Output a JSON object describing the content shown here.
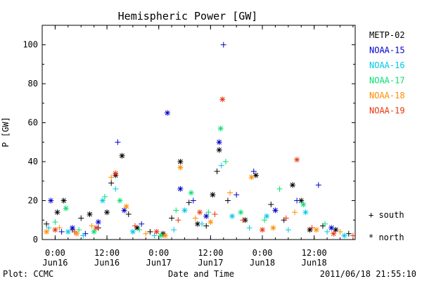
{
  "chart_data": {
    "type": "scatter",
    "title": "Hemispheric Power [GW]",
    "xlabel": "Date and Time",
    "ylabel": "P [GW]",
    "ylim": [
      0,
      110
    ],
    "xlim": [
      "2011-06-15T21:00",
      "2011-06-18T21:30"
    ],
    "y_ticks": [
      0,
      20,
      40,
      60,
      80,
      100
    ],
    "x_ticks": [
      {
        "time": "2011-06-16T00:00",
        "label": "0:00",
        "sublabel": "Jun16"
      },
      {
        "time": "2011-06-16T12:00",
        "label": "12:00",
        "sublabel": "Jun16"
      },
      {
        "time": "2011-06-17T00:00",
        "label": "0:00",
        "sublabel": "Jun17"
      },
      {
        "time": "2011-06-17T12:00",
        "label": "12:00",
        "sublabel": "Jun17"
      },
      {
        "time": "2011-06-18T00:00",
        "label": "0:00",
        "sublabel": "Jun18"
      },
      {
        "time": "2011-06-18T12:00",
        "label": "12:00",
        "sublabel": "Jun18"
      }
    ],
    "legend_placement": "right",
    "marker_legend": [
      {
        "symbol": "+",
        "label": "south"
      },
      {
        "symbol": "*",
        "label": "north"
      }
    ],
    "series": [
      {
        "name": "METP-02",
        "color": "#000000",
        "points": [
          {
            "t": "2011-06-15T22:00",
            "v": 8,
            "h": "s"
          },
          {
            "t": "2011-06-16T00:30",
            "v": 14,
            "h": "n"
          },
          {
            "t": "2011-06-16T02:00",
            "v": 20,
            "h": "n"
          },
          {
            "t": "2011-06-16T04:00",
            "v": 5,
            "h": "s"
          },
          {
            "t": "2011-06-16T06:00",
            "v": 11,
            "h": "s"
          },
          {
            "t": "2011-06-16T08:00",
            "v": 13,
            "h": "n"
          },
          {
            "t": "2011-06-16T10:00",
            "v": 6,
            "h": "s"
          },
          {
            "t": "2011-06-16T12:00",
            "v": 14,
            "h": "n"
          },
          {
            "t": "2011-06-16T13:00",
            "v": 29,
            "h": "s"
          },
          {
            "t": "2011-06-16T14:00",
            "v": 33,
            "h": "n"
          },
          {
            "t": "2011-06-16T15:30",
            "v": 43,
            "h": "n"
          },
          {
            "t": "2011-06-16T17:00",
            "v": 13,
            "h": "s"
          },
          {
            "t": "2011-06-16T19:00",
            "v": 6,
            "h": "n"
          },
          {
            "t": "2011-06-16T22:00",
            "v": 4,
            "h": "s"
          },
          {
            "t": "2011-06-17T01:00",
            "v": 3,
            "h": "n"
          },
          {
            "t": "2011-06-17T03:00",
            "v": 11,
            "h": "s"
          },
          {
            "t": "2011-06-17T05:00",
            "v": 40,
            "h": "n"
          },
          {
            "t": "2011-06-17T07:00",
            "v": 19,
            "h": "s"
          },
          {
            "t": "2011-06-17T09:00",
            "v": 8,
            "h": "n"
          },
          {
            "t": "2011-06-17T11:00",
            "v": 7,
            "h": "s"
          },
          {
            "t": "2011-06-17T12:30",
            "v": 23,
            "h": "n"
          },
          {
            "t": "2011-06-17T13:30",
            "v": 35,
            "h": "s"
          },
          {
            "t": "2011-06-17T14:00",
            "v": 46,
            "h": "n"
          },
          {
            "t": "2011-06-17T16:00",
            "v": 20,
            "h": "s"
          },
          {
            "t": "2011-06-17T20:00",
            "v": 10,
            "h": "n"
          },
          {
            "t": "2011-06-17T22:30",
            "v": 33,
            "h": "n"
          },
          {
            "t": "2011-06-18T02:00",
            "v": 18,
            "h": "s"
          },
          {
            "t": "2011-06-18T05:00",
            "v": 10,
            "h": "s"
          },
          {
            "t": "2011-06-18T07:00",
            "v": 28,
            "h": "n"
          },
          {
            "t": "2011-06-18T09:00",
            "v": 20,
            "h": "n"
          },
          {
            "t": "2011-06-18T11:00",
            "v": 5,
            "h": "n"
          },
          {
            "t": "2011-06-18T14:00",
            "v": 7,
            "h": "s"
          },
          {
            "t": "2011-06-18T17:00",
            "v": 5,
            "h": "n"
          },
          {
            "t": "2011-06-18T20:00",
            "v": 3,
            "h": "s"
          }
        ]
      },
      {
        "name": "NOAA-15",
        "color": "#0000cd",
        "points": [
          {
            "t": "2011-06-15T23:00",
            "v": 20,
            "h": "n"
          },
          {
            "t": "2011-06-16T01:30",
            "v": 4,
            "h": "s"
          },
          {
            "t": "2011-06-16T04:00",
            "v": 6,
            "h": "n"
          },
          {
            "t": "2011-06-16T07:00",
            "v": 3,
            "h": "s"
          },
          {
            "t": "2011-06-16T10:00",
            "v": 9,
            "h": "n"
          },
          {
            "t": "2011-06-16T14:30",
            "v": 50,
            "h": "s"
          },
          {
            "t": "2011-06-16T16:00",
            "v": 15,
            "h": "n"
          },
          {
            "t": "2011-06-16T20:00",
            "v": 8,
            "h": "s"
          },
          {
            "t": "2011-06-17T02:00",
            "v": 65,
            "h": "n"
          },
          {
            "t": "2011-06-17T05:00",
            "v": 26,
            "h": "n"
          },
          {
            "t": "2011-06-17T08:00",
            "v": 20,
            "h": "s"
          },
          {
            "t": "2011-06-17T11:00",
            "v": 12,
            "h": "n"
          },
          {
            "t": "2011-06-17T14:00",
            "v": 50,
            "h": "n"
          },
          {
            "t": "2011-06-17T15:00",
            "v": 100,
            "h": "s"
          },
          {
            "t": "2011-06-17T18:00",
            "v": 23,
            "h": "s"
          },
          {
            "t": "2011-06-17T22:00",
            "v": 35,
            "h": "s"
          },
          {
            "t": "2011-06-18T03:00",
            "v": 15,
            "h": "n"
          },
          {
            "t": "2011-06-18T08:00",
            "v": 20,
            "h": "s"
          },
          {
            "t": "2011-06-18T13:00",
            "v": 28,
            "h": "s"
          },
          {
            "t": "2011-06-18T16:00",
            "v": 6,
            "h": "n"
          }
        ]
      },
      {
        "name": "NOAA-16",
        "color": "#00c8e6",
        "points": [
          {
            "t": "2011-06-15T22:30",
            "v": 6,
            "h": "s"
          },
          {
            "t": "2011-06-16T03:00",
            "v": 4,
            "h": "n"
          },
          {
            "t": "2011-06-16T06:30",
            "v": 2,
            "h": "s"
          },
          {
            "t": "2011-06-16T11:00",
            "v": 20,
            "h": "n"
          },
          {
            "t": "2011-06-16T14:00",
            "v": 26,
            "h": "s"
          },
          {
            "t": "2011-06-16T18:00",
            "v": 4,
            "h": "n"
          },
          {
            "t": "2011-06-16T23:00",
            "v": 2,
            "h": "s"
          },
          {
            "t": "2011-06-17T03:30",
            "v": 5,
            "h": "s"
          },
          {
            "t": "2011-06-17T06:00",
            "v": 15,
            "h": "n"
          },
          {
            "t": "2011-06-17T10:00",
            "v": 8,
            "h": "s"
          },
          {
            "t": "2011-06-17T14:30",
            "v": 38,
            "h": "s"
          },
          {
            "t": "2011-06-17T17:00",
            "v": 12,
            "h": "n"
          },
          {
            "t": "2011-06-17T21:00",
            "v": 6,
            "h": "s"
          },
          {
            "t": "2011-06-18T01:00",
            "v": 12,
            "h": "n"
          },
          {
            "t": "2011-06-18T06:00",
            "v": 5,
            "h": "s"
          },
          {
            "t": "2011-06-18T10:00",
            "v": 14,
            "h": "n"
          },
          {
            "t": "2011-06-18T15:00",
            "v": 4,
            "h": "s"
          },
          {
            "t": "2011-06-18T19:00",
            "v": 2,
            "h": "n"
          }
        ]
      },
      {
        "name": "NOAA-17",
        "color": "#00e070",
        "points": [
          {
            "t": "2011-06-16T00:00",
            "v": 9,
            "h": "s"
          },
          {
            "t": "2011-06-16T02:30",
            "v": 16,
            "h": "n"
          },
          {
            "t": "2011-06-16T05:30",
            "v": 5,
            "h": "s"
          },
          {
            "t": "2011-06-16T09:00",
            "v": 4,
            "h": "n"
          },
          {
            "t": "2011-06-16T11:30",
            "v": 22,
            "h": "s"
          },
          {
            "t": "2011-06-16T15:00",
            "v": 20,
            "h": "n"
          },
          {
            "t": "2011-06-16T19:30",
            "v": 5,
            "h": "s"
          },
          {
            "t": "2011-06-17T00:30",
            "v": 2,
            "h": "n"
          },
          {
            "t": "2011-06-17T04:00",
            "v": 15,
            "h": "s"
          },
          {
            "t": "2011-06-17T07:30",
            "v": 24,
            "h": "n"
          },
          {
            "t": "2011-06-17T11:30",
            "v": 14,
            "h": "s"
          },
          {
            "t": "2011-06-17T14:20",
            "v": 57,
            "h": "n"
          },
          {
            "t": "2011-06-17T15:30",
            "v": 40,
            "h": "s"
          },
          {
            "t": "2011-06-17T19:00",
            "v": 14,
            "h": "n"
          },
          {
            "t": "2011-06-18T00:30",
            "v": 10,
            "h": "s"
          },
          {
            "t": "2011-06-18T04:00",
            "v": 26,
            "h": "s"
          },
          {
            "t": "2011-06-18T09:30",
            "v": 18,
            "h": "n"
          },
          {
            "t": "2011-06-18T14:30",
            "v": 8,
            "h": "s"
          }
        ]
      },
      {
        "name": "NOAA-18",
        "color": "#ff8c00",
        "points": [
          {
            "t": "2011-06-15T22:00",
            "v": 4,
            "h": "n"
          },
          {
            "t": "2011-06-16T01:00",
            "v": 6,
            "h": "s"
          },
          {
            "t": "2011-06-16T05:00",
            "v": 3,
            "h": "n"
          },
          {
            "t": "2011-06-16T08:30",
            "v": 7,
            "h": "s"
          },
          {
            "t": "2011-06-16T13:00",
            "v": 32,
            "h": "s"
          },
          {
            "t": "2011-06-16T16:30",
            "v": 17,
            "h": "n"
          },
          {
            "t": "2011-06-16T21:00",
            "v": 3,
            "h": "s"
          },
          {
            "t": "2011-06-17T01:30",
            "v": 2,
            "h": "n"
          },
          {
            "t": "2011-06-17T05:00",
            "v": 37,
            "h": "n"
          },
          {
            "t": "2011-06-17T08:30",
            "v": 11,
            "h": "s"
          },
          {
            "t": "2011-06-17T12:00",
            "v": 9,
            "h": "n"
          },
          {
            "t": "2011-06-17T16:30",
            "v": 24,
            "h": "s"
          },
          {
            "t": "2011-06-17T21:30",
            "v": 32,
            "h": "n"
          },
          {
            "t": "2011-06-18T02:30",
            "v": 6,
            "h": "n"
          },
          {
            "t": "2011-06-18T07:30",
            "v": 14,
            "h": "s"
          },
          {
            "t": "2011-06-18T12:30",
            "v": 5,
            "h": "n"
          },
          {
            "t": "2011-06-18T18:00",
            "v": 4,
            "h": "s"
          }
        ]
      },
      {
        "name": "NOAA-19",
        "color": "#e8340c",
        "points": [
          {
            "t": "2011-06-16T00:00",
            "v": 5,
            "h": "n"
          },
          {
            "t": "2011-06-16T04:30",
            "v": 4,
            "h": "s"
          },
          {
            "t": "2011-06-16T09:30",
            "v": 6,
            "h": "n"
          },
          {
            "t": "2011-06-16T14:00",
            "v": 34,
            "h": "n"
          },
          {
            "t": "2011-06-16T18:30",
            "v": 7,
            "h": "s"
          },
          {
            "t": "2011-06-16T23:30",
            "v": 4,
            "h": "n"
          },
          {
            "t": "2011-06-17T04:30",
            "v": 10,
            "h": "s"
          },
          {
            "t": "2011-06-17T09:30",
            "v": 14,
            "h": "n"
          },
          {
            "t": "2011-06-17T13:00",
            "v": 13,
            "h": "s"
          },
          {
            "t": "2011-06-17T14:45",
            "v": 72,
            "h": "n"
          },
          {
            "t": "2011-06-17T19:30",
            "v": 10,
            "h": "s"
          },
          {
            "t": "2011-06-18T00:00",
            "v": 5,
            "h": "n"
          },
          {
            "t": "2011-06-18T05:30",
            "v": 11,
            "h": "s"
          },
          {
            "t": "2011-06-18T08:00",
            "v": 41,
            "h": "n"
          },
          {
            "t": "2011-06-18T11:30",
            "v": 6,
            "h": "s"
          },
          {
            "t": "2011-06-18T16:30",
            "v": 3,
            "h": "n"
          },
          {
            "t": "2011-06-18T21:00",
            "v": 2,
            "h": "s"
          }
        ]
      }
    ]
  },
  "footer": {
    "left": "Plot: CCMC",
    "right": "2011/06/18 21:55:10"
  }
}
